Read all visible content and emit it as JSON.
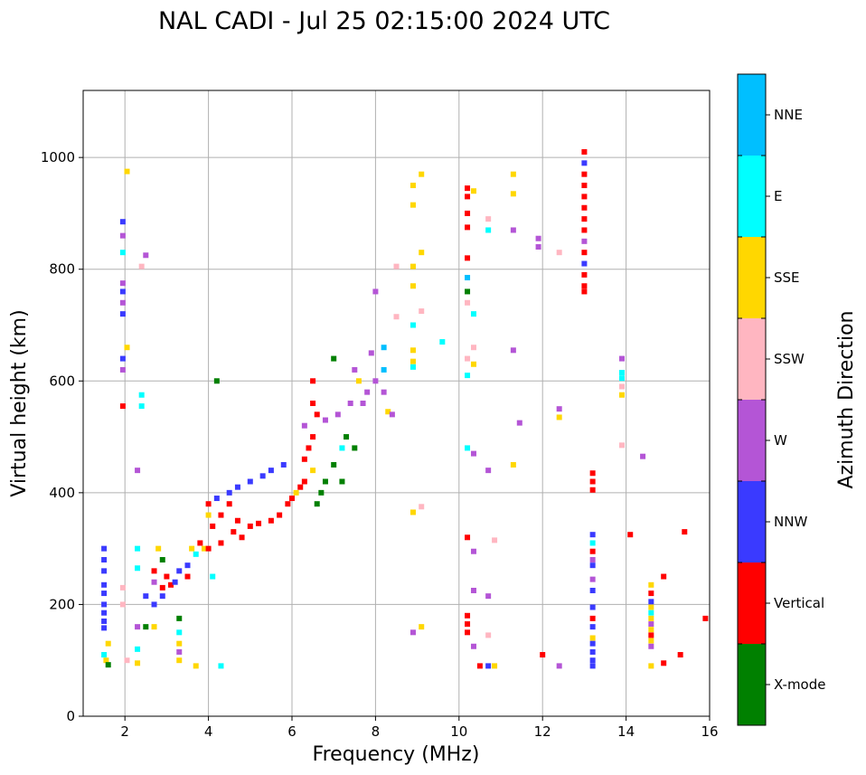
{
  "chart_data": {
    "type": "scatter",
    "title": "NAL CADI - Jul 25 02:15:00 2024 UTC",
    "xlabel": "Frequency (MHz)",
    "ylabel": "Virtual height (km)",
    "xlim": [
      1,
      16
    ],
    "ylim": [
      0,
      1120
    ],
    "xticks": [
      2,
      4,
      6,
      8,
      10,
      12,
      14,
      16
    ],
    "yticks": [
      0,
      200,
      400,
      600,
      800,
      1000
    ],
    "grid": true,
    "colorbar": {
      "label": "Azimuth Direction",
      "categories": [
        {
          "name": "X-mode",
          "color": "#008000"
        },
        {
          "name": "Vertical",
          "color": "#ff0000"
        },
        {
          "name": "NNW",
          "color": "#3a3aff"
        },
        {
          "name": "W",
          "color": "#b455d6"
        },
        {
          "name": "SSW",
          "color": "#ffb6c1"
        },
        {
          "name": "SSE",
          "color": "#ffd700"
        },
        {
          "name": "E",
          "color": "#00ffff"
        },
        {
          "name": "NNE",
          "color": "#00bfff"
        }
      ]
    },
    "points": [
      [
        1.5,
        300,
        "NNW"
      ],
      [
        1.5,
        280,
        "NNW"
      ],
      [
        1.5,
        260,
        "NNW"
      ],
      [
        1.5,
        235,
        "NNW"
      ],
      [
        1.5,
        220,
        "NNW"
      ],
      [
        1.5,
        200,
        "NNW"
      ],
      [
        1.5,
        185,
        "NNW"
      ],
      [
        1.5,
        170,
        "NNW"
      ],
      [
        1.5,
        158,
        "NNW"
      ],
      [
        1.5,
        110,
        "E"
      ],
      [
        1.55,
        100,
        "SSE"
      ],
      [
        1.6,
        92,
        "X-mode"
      ],
      [
        1.6,
        130,
        "SSE"
      ],
      [
        1.95,
        885,
        "NNW"
      ],
      [
        1.95,
        860,
        "W"
      ],
      [
        1.95,
        830,
        "E"
      ],
      [
        1.95,
        775,
        "W"
      ],
      [
        1.95,
        760,
        "NNW"
      ],
      [
        1.95,
        740,
        "W"
      ],
      [
        1.95,
        720,
        "NNW"
      ],
      [
        1.95,
        640,
        "NNW"
      ],
      [
        1.95,
        620,
        "W"
      ],
      [
        1.95,
        555,
        "Vertical"
      ],
      [
        1.95,
        230,
        "SSW"
      ],
      [
        1.95,
        200,
        "SSW"
      ],
      [
        2.05,
        975,
        "SSE"
      ],
      [
        2.05,
        660,
        "SSE"
      ],
      [
        2.05,
        100,
        "SSW"
      ],
      [
        2.3,
        440,
        "W"
      ],
      [
        2.3,
        300,
        "E"
      ],
      [
        2.3,
        265,
        "E"
      ],
      [
        2.3,
        160,
        "W"
      ],
      [
        2.3,
        120,
        "E"
      ],
      [
        2.3,
        95,
        "SSE"
      ],
      [
        2.4,
        575,
        "E"
      ],
      [
        2.4,
        555,
        "E"
      ],
      [
        2.4,
        805,
        "SSW"
      ],
      [
        2.5,
        825,
        "W"
      ],
      [
        2.5,
        215,
        "NNW"
      ],
      [
        2.5,
        160,
        "X-mode"
      ],
      [
        2.7,
        260,
        "Vertical"
      ],
      [
        2.7,
        240,
        "W"
      ],
      [
        2.7,
        200,
        "NNW"
      ],
      [
        2.7,
        160,
        "SSE"
      ],
      [
        2.8,
        300,
        "SSE"
      ],
      [
        2.9,
        280,
        "X-mode"
      ],
      [
        2.9,
        230,
        "Vertical"
      ],
      [
        2.9,
        215,
        "NNW"
      ],
      [
        3.0,
        250,
        "Vertical"
      ],
      [
        3.1,
        235,
        "Vertical"
      ],
      [
        3.2,
        240,
        "NNW"
      ],
      [
        3.3,
        260,
        "NNW"
      ],
      [
        3.3,
        175,
        "X-mode"
      ],
      [
        3.3,
        150,
        "E"
      ],
      [
        3.3,
        130,
        "SSE"
      ],
      [
        3.3,
        115,
        "W"
      ],
      [
        3.3,
        100,
        "SSE"
      ],
      [
        3.5,
        250,
        "Vertical"
      ],
      [
        3.5,
        270,
        "NNW"
      ],
      [
        3.6,
        300,
        "SSE"
      ],
      [
        3.7,
        290,
        "E"
      ],
      [
        3.7,
        90,
        "SSE"
      ],
      [
        3.8,
        310,
        "Vertical"
      ],
      [
        3.9,
        300,
        "SSE"
      ],
      [
        4.0,
        380,
        "Vertical"
      ],
      [
        4.0,
        360,
        "SSE"
      ],
      [
        4.0,
        300,
        "Vertical"
      ],
      [
        4.1,
        340,
        "Vertical"
      ],
      [
        4.1,
        250,
        "E"
      ],
      [
        4.2,
        390,
        "NNW"
      ],
      [
        4.2,
        600,
        "X-mode"
      ],
      [
        4.3,
        360,
        "Vertical"
      ],
      [
        4.3,
        310,
        "Vertical"
      ],
      [
        4.3,
        90,
        "E"
      ],
      [
        4.5,
        380,
        "Vertical"
      ],
      [
        4.5,
        400,
        "NNW"
      ],
      [
        4.6,
        330,
        "Vertical"
      ],
      [
        4.7,
        350,
        "Vertical"
      ],
      [
        4.7,
        410,
        "NNW"
      ],
      [
        4.8,
        320,
        "Vertical"
      ],
      [
        5.0,
        340,
        "Vertical"
      ],
      [
        5.0,
        420,
        "NNW"
      ],
      [
        5.2,
        345,
        "Vertical"
      ],
      [
        5.3,
        430,
        "NNW"
      ],
      [
        5.5,
        350,
        "Vertical"
      ],
      [
        5.5,
        440,
        "NNW"
      ],
      [
        5.7,
        360,
        "Vertical"
      ],
      [
        5.8,
        450,
        "NNW"
      ],
      [
        5.9,
        380,
        "Vertical"
      ],
      [
        6.0,
        390,
        "Vertical"
      ],
      [
        6.1,
        400,
        "SSE"
      ],
      [
        6.2,
        410,
        "Vertical"
      ],
      [
        6.3,
        520,
        "W"
      ],
      [
        6.3,
        460,
        "Vertical"
      ],
      [
        6.3,
        420,
        "Vertical"
      ],
      [
        6.4,
        480,
        "Vertical"
      ],
      [
        6.5,
        600,
        "Vertical"
      ],
      [
        6.5,
        560,
        "Vertical"
      ],
      [
        6.5,
        500,
        "Vertical"
      ],
      [
        6.5,
        440,
        "SSE"
      ],
      [
        6.6,
        540,
        "Vertical"
      ],
      [
        6.6,
        380,
        "X-mode"
      ],
      [
        6.7,
        400,
        "X-mode"
      ],
      [
        6.8,
        530,
        "W"
      ],
      [
        6.8,
        420,
        "X-mode"
      ],
      [
        7.0,
        640,
        "X-mode"
      ],
      [
        7.0,
        450,
        "X-mode"
      ],
      [
        7.1,
        540,
        "W"
      ],
      [
        7.2,
        480,
        "E"
      ],
      [
        7.2,
        420,
        "X-mode"
      ],
      [
        7.3,
        500,
        "X-mode"
      ],
      [
        7.4,
        560,
        "W"
      ],
      [
        7.5,
        620,
        "W"
      ],
      [
        7.5,
        480,
        "X-mode"
      ],
      [
        7.6,
        600,
        "SSE"
      ],
      [
        7.7,
        560,
        "W"
      ],
      [
        7.8,
        580,
        "W"
      ],
      [
        7.9,
        650,
        "W"
      ],
      [
        8.0,
        600,
        "W"
      ],
      [
        8.2,
        660,
        "NNE"
      ],
      [
        8.2,
        620,
        "NNE"
      ],
      [
        8.2,
        580,
        "W"
      ],
      [
        8.3,
        545,
        "SSE"
      ],
      [
        8.4,
        540,
        "W"
      ],
      [
        8.0,
        760,
        "W"
      ],
      [
        8.5,
        805,
        "SSW"
      ],
      [
        8.5,
        715,
        "SSW"
      ],
      [
        8.9,
        950,
        "SSE"
      ],
      [
        8.9,
        915,
        "SSE"
      ],
      [
        8.9,
        805,
        "SSE"
      ],
      [
        8.9,
        770,
        "SSE"
      ],
      [
        8.9,
        700,
        "E"
      ],
      [
        8.9,
        655,
        "SSE"
      ],
      [
        8.9,
        635,
        "SSE"
      ],
      [
        8.9,
        625,
        "E"
      ],
      [
        8.9,
        365,
        "SSE"
      ],
      [
        8.9,
        150,
        "W"
      ],
      [
        9.1,
        970,
        "SSE"
      ],
      [
        9.1,
        830,
        "SSE"
      ],
      [
        9.1,
        725,
        "SSW"
      ],
      [
        9.1,
        375,
        "SSW"
      ],
      [
        9.1,
        160,
        "SSE"
      ],
      [
        9.6,
        670,
        "E"
      ],
      [
        10.2,
        945,
        "Vertical"
      ],
      [
        10.2,
        930,
        "Vertical"
      ],
      [
        10.2,
        900,
        "Vertical"
      ],
      [
        10.2,
        875,
        "Vertical"
      ],
      [
        10.2,
        820,
        "Vertical"
      ],
      [
        10.2,
        785,
        "NNE"
      ],
      [
        10.2,
        760,
        "X-mode"
      ],
      [
        10.2,
        740,
        "SSW"
      ],
      [
        10.2,
        640,
        "SSW"
      ],
      [
        10.2,
        610,
        "E"
      ],
      [
        10.2,
        480,
        "E"
      ],
      [
        10.2,
        320,
        "Vertical"
      ],
      [
        10.2,
        180,
        "Vertical"
      ],
      [
        10.2,
        165,
        "Vertical"
      ],
      [
        10.2,
        150,
        "Vertical"
      ],
      [
        10.35,
        940,
        "SSE"
      ],
      [
        10.35,
        720,
        "E"
      ],
      [
        10.35,
        660,
        "SSW"
      ],
      [
        10.35,
        630,
        "SSE"
      ],
      [
        10.35,
        470,
        "W"
      ],
      [
        10.35,
        295,
        "W"
      ],
      [
        10.35,
        225,
        "W"
      ],
      [
        10.35,
        125,
        "W"
      ],
      [
        10.5,
        90,
        "Vertical"
      ],
      [
        10.7,
        890,
        "SSW"
      ],
      [
        10.7,
        870,
        "E"
      ],
      [
        10.7,
        440,
        "W"
      ],
      [
        10.7,
        215,
        "W"
      ],
      [
        10.7,
        145,
        "SSW"
      ],
      [
        10.7,
        90,
        "NNW"
      ],
      [
        10.85,
        90,
        "SSE"
      ],
      [
        10.85,
        315,
        "SSW"
      ],
      [
        11.3,
        970,
        "SSE"
      ],
      [
        11.3,
        935,
        "SSE"
      ],
      [
        11.3,
        870,
        "W"
      ],
      [
        11.3,
        655,
        "W"
      ],
      [
        11.3,
        450,
        "SSE"
      ],
      [
        11.45,
        525,
        "W"
      ],
      [
        11.9,
        855,
        "W"
      ],
      [
        11.9,
        840,
        "W"
      ],
      [
        12.0,
        110,
        "Vertical"
      ],
      [
        12.4,
        830,
        "SSW"
      ],
      [
        12.4,
        550,
        "W"
      ],
      [
        12.4,
        535,
        "SSE"
      ],
      [
        12.4,
        90,
        "W"
      ],
      [
        13.0,
        1010,
        "Vertical"
      ],
      [
        13.0,
        990,
        "NNW"
      ],
      [
        13.0,
        970,
        "Vertical"
      ],
      [
        13.0,
        950,
        "Vertical"
      ],
      [
        13.0,
        930,
        "Vertical"
      ],
      [
        13.0,
        910,
        "Vertical"
      ],
      [
        13.0,
        890,
        "Vertical"
      ],
      [
        13.0,
        870,
        "Vertical"
      ],
      [
        13.0,
        850,
        "W"
      ],
      [
        13.0,
        830,
        "Vertical"
      ],
      [
        13.0,
        810,
        "NNW"
      ],
      [
        13.0,
        790,
        "Vertical"
      ],
      [
        13.0,
        770,
        "Vertical"
      ],
      [
        13.0,
        760,
        "Vertical"
      ],
      [
        13.2,
        435,
        "Vertical"
      ],
      [
        13.2,
        420,
        "Vertical"
      ],
      [
        13.2,
        405,
        "Vertical"
      ],
      [
        13.2,
        325,
        "NNW"
      ],
      [
        13.2,
        310,
        "E"
      ],
      [
        13.2,
        295,
        "Vertical"
      ],
      [
        13.2,
        280,
        "W"
      ],
      [
        13.2,
        270,
        "NNW"
      ],
      [
        13.2,
        245,
        "W"
      ],
      [
        13.2,
        225,
        "NNW"
      ],
      [
        13.2,
        195,
        "NNW"
      ],
      [
        13.2,
        175,
        "Vertical"
      ],
      [
        13.2,
        160,
        "NNW"
      ],
      [
        13.2,
        140,
        "SSE"
      ],
      [
        13.2,
        130,
        "NNW"
      ],
      [
        13.2,
        115,
        "NNW"
      ],
      [
        13.2,
        100,
        "NNW"
      ],
      [
        13.2,
        90,
        "NNW"
      ],
      [
        13.9,
        640,
        "W"
      ],
      [
        13.9,
        615,
        "E"
      ],
      [
        13.9,
        605,
        "E"
      ],
      [
        13.9,
        590,
        "SSW"
      ],
      [
        13.9,
        575,
        "SSE"
      ],
      [
        13.9,
        485,
        "SSW"
      ],
      [
        14.1,
        325,
        "Vertical"
      ],
      [
        14.4,
        465,
        "W"
      ],
      [
        14.6,
        235,
        "SSE"
      ],
      [
        14.6,
        220,
        "Vertical"
      ],
      [
        14.6,
        205,
        "NNW"
      ],
      [
        14.6,
        195,
        "SSE"
      ],
      [
        14.6,
        185,
        "E"
      ],
      [
        14.6,
        175,
        "SSE"
      ],
      [
        14.6,
        165,
        "W"
      ],
      [
        14.6,
        155,
        "SSE"
      ],
      [
        14.6,
        145,
        "Vertical"
      ],
      [
        14.6,
        135,
        "SSE"
      ],
      [
        14.6,
        125,
        "W"
      ],
      [
        14.6,
        90,
        "SSE"
      ],
      [
        14.9,
        95,
        "Vertical"
      ],
      [
        14.9,
        250,
        "Vertical"
      ],
      [
        15.3,
        110,
        "Vertical"
      ],
      [
        15.4,
        330,
        "Vertical"
      ],
      [
        15.9,
        175,
        "Vertical"
      ]
    ]
  }
}
